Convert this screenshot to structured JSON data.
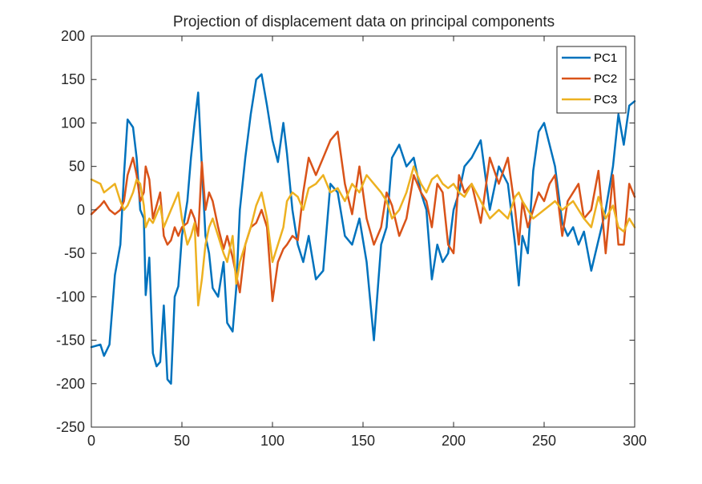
{
  "chart_data": {
    "type": "line",
    "title": "Projection of displacement data on principal components",
    "xlabel": "",
    "ylabel": "",
    "xlim": [
      0,
      300
    ],
    "ylim": [
      -250,
      200
    ],
    "xticks": [
      0,
      50,
      100,
      150,
      200,
      250,
      300
    ],
    "yticks": [
      -250,
      -200,
      -150,
      -100,
      -50,
      0,
      50,
      100,
      150,
      200
    ],
    "xtick_labels": [
      "0",
      "50",
      "100",
      "150",
      "200",
      "250",
      "300"
    ],
    "ytick_labels": [
      "-250",
      "-200",
      "-150",
      "-100",
      "-50",
      "0",
      "50",
      "100",
      "150",
      "200"
    ],
    "grid": false,
    "legend_position": "top-right",
    "x": [
      0,
      5,
      7,
      10,
      13,
      16,
      18,
      20,
      23,
      25,
      27,
      29,
      30,
      32,
      34,
      36,
      38,
      40,
      42,
      44,
      46,
      48,
      50,
      53,
      55,
      57,
      59,
      61,
      63,
      65,
      67,
      70,
      73,
      75,
      78,
      80,
      82,
      85,
      88,
      91,
      94,
      97,
      100,
      103,
      106,
      108,
      111,
      114,
      117,
      120,
      124,
      128,
      132,
      136,
      140,
      144,
      148,
      152,
      156,
      160,
      163,
      166,
      170,
      174,
      178,
      182,
      185,
      188,
      191,
      194,
      197,
      200,
      203,
      206,
      210,
      215,
      220,
      225,
      230,
      234,
      236,
      238,
      241,
      244,
      247,
      250,
      253,
      256,
      260,
      263,
      266,
      269,
      272,
      276,
      280,
      284,
      288,
      291,
      294,
      297,
      300
    ],
    "series": [
      {
        "name": "PC1",
        "color": "#0072BD",
        "values": [
          -158,
          -155,
          -168,
          -155,
          -75,
          -40,
          40,
          104,
          95,
          60,
          0,
          -10,
          -98,
          -55,
          -165,
          -180,
          -175,
          -110,
          -195,
          -200,
          -100,
          -88,
          -30,
          10,
          60,
          100,
          135,
          50,
          -30,
          -50,
          -90,
          -100,
          -60,
          -130,
          -140,
          -90,
          0,
          60,
          110,
          150,
          156,
          120,
          80,
          55,
          100,
          65,
          0,
          -40,
          -60,
          -30,
          -80,
          -70,
          30,
          20,
          -30,
          -40,
          -10,
          -60,
          -150,
          -40,
          -20,
          60,
          75,
          50,
          60,
          20,
          0,
          -80,
          -40,
          -60,
          -50,
          0,
          20,
          50,
          60,
          80,
          0,
          50,
          30,
          -40,
          -87,
          -30,
          -50,
          45,
          90,
          100,
          75,
          50,
          -15,
          -30,
          -20,
          -40,
          -25,
          -70,
          -35,
          0,
          50,
          110,
          75,
          120,
          125
        ]
      },
      {
        "name": "PC2",
        "color": "#D95319",
        "values": [
          -5,
          5,
          10,
          0,
          -5,
          0,
          10,
          40,
          60,
          40,
          10,
          20,
          50,
          35,
          -10,
          5,
          20,
          -30,
          -40,
          -35,
          -20,
          -30,
          -20,
          -15,
          0,
          -10,
          -30,
          55,
          0,
          20,
          10,
          -20,
          -45,
          -30,
          -55,
          -75,
          -95,
          -40,
          -20,
          -15,
          0,
          -20,
          -105,
          -60,
          -45,
          -40,
          -30,
          -35,
          20,
          60,
          40,
          60,
          80,
          90,
          30,
          -5,
          50,
          -10,
          -40,
          -20,
          20,
          5,
          -30,
          -10,
          40,
          20,
          10,
          -20,
          30,
          20,
          -40,
          -50,
          40,
          20,
          30,
          -15,
          60,
          30,
          60,
          0,
          -40,
          10,
          -20,
          0,
          20,
          10,
          30,
          40,
          -30,
          10,
          20,
          30,
          -10,
          0,
          45,
          -50,
          40,
          -40,
          -40,
          30,
          15
        ]
      },
      {
        "name": "PC3",
        "color": "#EDB120",
        "values": [
          35,
          30,
          20,
          25,
          30,
          10,
          0,
          5,
          20,
          35,
          30,
          5,
          -20,
          -10,
          -15,
          -5,
          5,
          -20,
          -10,
          0,
          10,
          20,
          -10,
          -40,
          -30,
          -15,
          -110,
          -80,
          -40,
          -20,
          -10,
          -30,
          -50,
          -60,
          -30,
          -85,
          -60,
          -40,
          -20,
          5,
          20,
          -10,
          -60,
          -40,
          -20,
          10,
          20,
          15,
          0,
          25,
          30,
          40,
          20,
          25,
          10,
          30,
          20,
          40,
          30,
          20,
          10,
          -10,
          0,
          20,
          50,
          30,
          20,
          35,
          40,
          30,
          25,
          30,
          20,
          15,
          30,
          10,
          -10,
          0,
          -10,
          15,
          20,
          10,
          0,
          -10,
          -5,
          0,
          5,
          10,
          0,
          5,
          10,
          0,
          -10,
          -20,
          15,
          -10,
          5,
          -20,
          -25,
          -10,
          -20
        ]
      }
    ]
  }
}
